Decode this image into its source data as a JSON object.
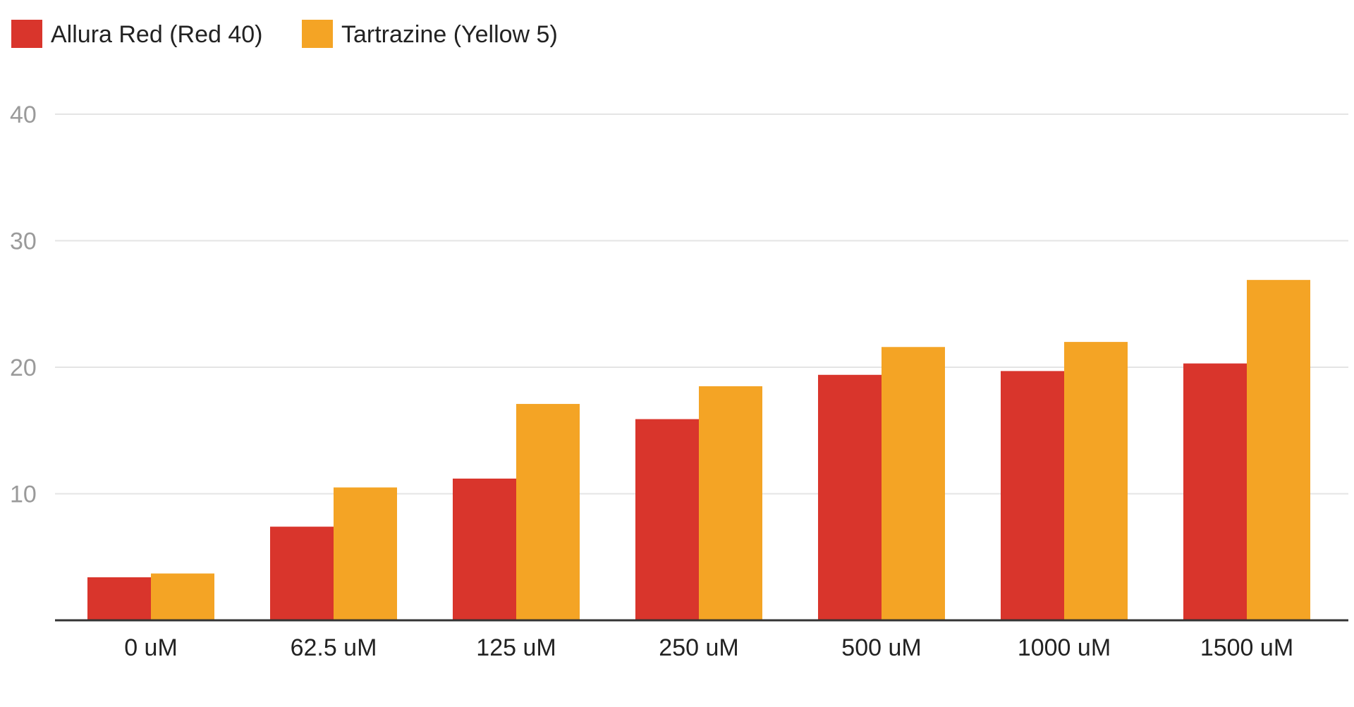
{
  "chart_data": {
    "type": "bar",
    "title": "",
    "xlabel": "",
    "ylabel": "",
    "categories": [
      "0 uM",
      "62.5 uM",
      "125 uM",
      "250 uM",
      "500 uM",
      "1000 uM",
      "1500 uM"
    ],
    "series": [
      {
        "name": "Allura Red (Red 40)",
        "color": "#d9352c",
        "values": [
          3.4,
          7.4,
          11.2,
          15.9,
          19.4,
          19.7,
          20.3
        ]
      },
      {
        "name": "Tartrazine (Yellow 5)",
        "color": "#f4a425",
        "values": [
          3.7,
          10.5,
          17.1,
          18.5,
          21.6,
          22.0,
          26.9
        ]
      }
    ],
    "ylim": [
      0,
      40
    ],
    "yticks": [
      "10",
      "20",
      "30",
      "40"
    ],
    "grid": true,
    "legend_position": "top-left"
  }
}
